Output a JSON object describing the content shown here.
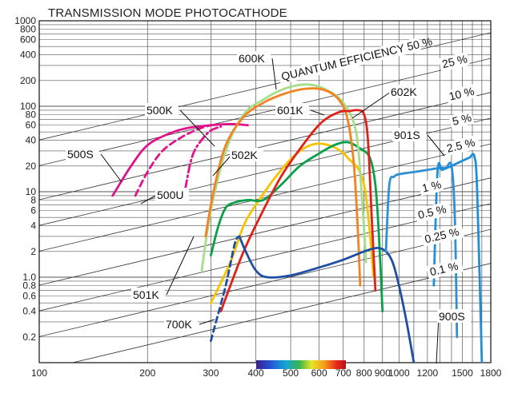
{
  "chart_data": {
    "type": "line",
    "title": "TRANSMISSION MODE PHOTOCATHODE",
    "xlabel": "",
    "ylabel": "",
    "x_scale": "log",
    "y_scale": "log",
    "xlim": [
      100,
      1800
    ],
    "ylim": [
      0.1,
      1000
    ],
    "grid": true,
    "x_ticks": [
      "100",
      "200",
      "300",
      "400",
      "500",
      "600",
      "700",
      "800",
      "900",
      "1000",
      "1100",
      "1200",
      "1300",
      "1400",
      "1500",
      "1600",
      "1700",
      "1800"
    ],
    "x_tick_labels": [
      "100",
      "200",
      "300",
      "400",
      "500",
      "600",
      "700",
      "800",
      "900",
      "1000",
      "1200",
      "1500",
      "1800"
    ],
    "y_tick_labels": [
      "1000",
      "800",
      "600",
      "400",
      "200",
      "100",
      "80",
      "60",
      "40",
      "20",
      "10",
      "8",
      "6",
      "4",
      "2",
      "1.0",
      "0.8",
      "0.6",
      "0.4",
      "0.2"
    ],
    "qe_lines": [
      {
        "label": "QUANTUM EFFICIENCY 50 %",
        "value": 50
      },
      {
        "label": "25 %",
        "value": 25
      },
      {
        "label": "10 %",
        "value": 10
      },
      {
        "label": "5 %",
        "value": 5
      },
      {
        "label": "2.5 %",
        "value": 2.5
      },
      {
        "label": "1 %",
        "value": 1
      },
      {
        "label": "0.5 %",
        "value": 0.5
      },
      {
        "label": "0.25 %",
        "value": 0.25
      },
      {
        "label": "0.1 %",
        "value": 0.1
      }
    ],
    "series": [
      {
        "name": "500K",
        "color": "#e0138c",
        "dash": "",
        "x": [
          160,
          180,
          200,
          230,
          260,
          300,
          340,
          380
        ],
        "y": [
          9,
          20,
          35,
          48,
          56,
          60,
          62,
          60
        ]
      },
      {
        "name": "500U",
        "color": "#e0138c",
        "dash": "8,5",
        "x": [
          185,
          200,
          220,
          250,
          280,
          300
        ],
        "y": [
          9,
          17,
          30,
          44,
          55,
          60
        ]
      },
      {
        "name": "500S",
        "color": "#e0138c",
        "dash": "10,4,2,4",
        "x": [
          255,
          262,
          270,
          285,
          300,
          320
        ],
        "y": [
          11,
          20,
          30,
          42,
          52,
          58
        ]
      },
      {
        "name": "501K",
        "color": "#f5c400",
        "dash": "",
        "x": [
          300,
          340,
          370,
          400,
          460,
          520,
          580,
          650,
          720,
          800,
          850
        ],
        "y": [
          0.5,
          1.5,
          4,
          7,
          16,
          28,
          36,
          34,
          25,
          12,
          1
        ]
      },
      {
        "name": "502K",
        "color": "#0aa04a",
        "dash": "",
        "x": [
          300,
          315,
          330,
          350,
          380,
          420,
          470,
          530,
          600,
          660,
          720,
          780,
          830,
          860,
          880,
          900
        ],
        "y": [
          1.8,
          4,
          6.5,
          7.5,
          8,
          8,
          12,
          20,
          28,
          35,
          38,
          32,
          25,
          12,
          3,
          0.4
        ]
      },
      {
        "name": "600K",
        "color": "#a6dd8a",
        "dash": "",
        "x": [
          283,
          300,
          330,
          370,
          420,
          480,
          550,
          620,
          700,
          760,
          790,
          810
        ],
        "y": [
          1.2,
          6,
          30,
          80,
          120,
          160,
          180,
          160,
          110,
          50,
          8,
          1.5
        ]
      },
      {
        "name": "601K",
        "color": "#f58220",
        "dash": "",
        "x": [
          290,
          305,
          330,
          370,
          420,
          480,
          550,
          620,
          680,
          720,
          750,
          770,
          780
        ],
        "y": [
          3,
          10,
          35,
          75,
          110,
          140,
          160,
          155,
          120,
          70,
          20,
          3,
          0.8
        ]
      },
      {
        "name": "602K",
        "color": "#e0211a",
        "dash": "",
        "x": [
          320,
          340,
          370,
          410,
          470,
          540,
          610,
          680,
          730,
          770,
          800,
          820,
          840,
          860
        ],
        "y": [
          0.4,
          0.8,
          2,
          5,
          15,
          35,
          65,
          85,
          88,
          90,
          80,
          40,
          5,
          0.7
        ]
      },
      {
        "name": "700K",
        "color": "#1f4ea3",
        "dash": "7,5",
        "x": [
          300,
          310,
          330,
          350,
          360
        ],
        "y": [
          0.18,
          0.3,
          0.8,
          2.5,
          3
        ]
      },
      {
        "name": "700K",
        "color": "#1f4ea3",
        "dash": "",
        "x": [
          360,
          375,
          400,
          430,
          500,
          600,
          700,
          800,
          870,
          920,
          960,
          1000,
          1050,
          1100
        ],
        "y": [
          3,
          2,
          1.2,
          1.0,
          1.05,
          1.3,
          1.6,
          2.0,
          2.2,
          2.0,
          1.5,
          0.8,
          0.3,
          0.1
        ]
      },
      {
        "name": "901S",
        "color": "#2e8fd1",
        "dash": "",
        "x": [
          920,
          940,
          970,
          1000,
          1100,
          1200,
          1300,
          1350,
          1400,
          1430,
          1450
        ],
        "y": [
          2,
          12,
          15,
          16,
          17,
          18,
          19,
          19,
          20,
          5,
          0.2
        ]
      },
      {
        "name": "900S",
        "color": "#1f8fd6",
        "dash": "",
        "x": [
          1250,
          1280,
          1320,
          1400,
          1500,
          1570,
          1620,
          1650,
          1700
        ],
        "y": [
          0.8,
          17,
          18,
          20,
          23,
          25,
          26,
          10,
          0.1
        ]
      }
    ],
    "annotations": [
      {
        "text": "500S"
      },
      {
        "text": "500K"
      },
      {
        "text": "500U"
      },
      {
        "text": "501K"
      },
      {
        "text": "502K"
      },
      {
        "text": "600K"
      },
      {
        "text": "601K"
      },
      {
        "text": "602K"
      },
      {
        "text": "700K"
      },
      {
        "text": "900S"
      },
      {
        "text": "901S"
      }
    ],
    "wavelength_bar_labels": [
      "400",
      "500",
      "600",
      "700"
    ]
  }
}
